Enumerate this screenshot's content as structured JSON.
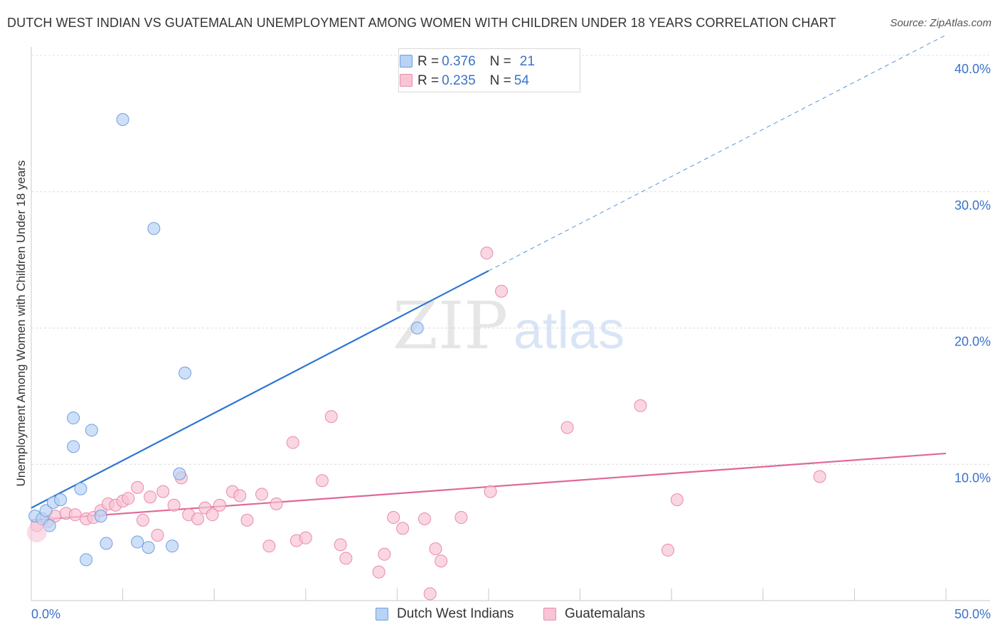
{
  "title": "DUTCH WEST INDIAN VS GUATEMALAN UNEMPLOYMENT AMONG WOMEN WITH CHILDREN UNDER 18 YEARS CORRELATION CHART",
  "source": "Source: ZipAtlas.com",
  "watermark": {
    "zip": "ZIP",
    "atlas": "atlas"
  },
  "legend_top": {
    "rows": [
      {
        "r_label": "R = ",
        "r_value": "0.376",
        "n_label": "N = ",
        "n_value": "21"
      },
      {
        "r_label": "R = ",
        "r_value": "0.235",
        "n_label": "N = ",
        "n_value": "54"
      }
    ]
  },
  "chart_data": {
    "type": "scatter",
    "title": "DUTCH WEST INDIAN VS GUATEMALAN UNEMPLOYMENT AMONG WOMEN WITH CHILDREN UNDER 18 YEARS CORRELATION CHART",
    "xlabel": "",
    "ylabel": "Unemployment Among Women with Children Under 18 years",
    "xlim": [
      0,
      50
    ],
    "ylim": [
      0,
      40
    ],
    "x_tick_labels": [
      "0.0%",
      "50.0%"
    ],
    "y_tick_labels": [
      "10.0%",
      "20.0%",
      "30.0%",
      "40.0%"
    ],
    "y_ticks": [
      10,
      20,
      30,
      40
    ],
    "grid": "horizontal dashed",
    "legend_position": "top-center and bottom",
    "series": [
      {
        "name": "Dutch West Indians",
        "color": "#6f9fe0",
        "fill": "#b9d3f4",
        "line_color": "#2f75d2",
        "r": 0.376,
        "n": 21,
        "trend": {
          "x": [
            0,
            25
          ],
          "y": [
            6.8,
            24.2
          ],
          "extend_to": [
            50,
            41.5
          ]
        },
        "points": [
          [
            0.2,
            6.2
          ],
          [
            0.6,
            6.0
          ],
          [
            0.8,
            6.6
          ],
          [
            1.0,
            5.5
          ],
          [
            1.2,
            7.2
          ],
          [
            1.6,
            7.4
          ],
          [
            2.3,
            11.3
          ],
          [
            2.3,
            13.4
          ],
          [
            2.7,
            8.2
          ],
          [
            3.0,
            3.0
          ],
          [
            3.3,
            12.5
          ],
          [
            3.8,
            6.2
          ],
          [
            4.1,
            4.2
          ],
          [
            5.0,
            35.3
          ],
          [
            5.8,
            4.3
          ],
          [
            6.4,
            3.9
          ],
          [
            6.7,
            27.3
          ],
          [
            7.7,
            4.0
          ],
          [
            8.1,
            9.3
          ],
          [
            8.4,
            16.7
          ],
          [
            21.1,
            20.0
          ]
        ]
      },
      {
        "name": "Guatemalans",
        "color": "#e98aab",
        "fill": "#f7c5d6",
        "line_color": "#e0679a",
        "r": 0.235,
        "n": 54,
        "trend": {
          "x": [
            0,
            50
          ],
          "y": [
            5.9,
            10.8
          ]
        },
        "points": [
          [
            0.3,
            5.5
          ],
          [
            0.9,
            5.8
          ],
          [
            1.3,
            6.2
          ],
          [
            1.9,
            6.4
          ],
          [
            2.4,
            6.3
          ],
          [
            3.0,
            6.0
          ],
          [
            3.4,
            6.1
          ],
          [
            3.8,
            6.6
          ],
          [
            4.2,
            7.1
          ],
          [
            4.6,
            7.0
          ],
          [
            5.0,
            7.3
          ],
          [
            5.3,
            7.5
          ],
          [
            5.8,
            8.3
          ],
          [
            6.1,
            5.9
          ],
          [
            6.5,
            7.6
          ],
          [
            6.9,
            4.8
          ],
          [
            7.2,
            8.0
          ],
          [
            7.8,
            7.0
          ],
          [
            8.2,
            9.0
          ],
          [
            8.6,
            6.3
          ],
          [
            9.1,
            6.0
          ],
          [
            9.5,
            6.8
          ],
          [
            9.9,
            6.3
          ],
          [
            10.3,
            7.0
          ],
          [
            11.0,
            8.0
          ],
          [
            11.4,
            7.7
          ],
          [
            11.8,
            5.9
          ],
          [
            12.6,
            7.8
          ],
          [
            13.0,
            4.0
          ],
          [
            13.4,
            7.1
          ],
          [
            14.3,
            11.6
          ],
          [
            14.5,
            4.4
          ],
          [
            15.0,
            4.6
          ],
          [
            15.9,
            8.8
          ],
          [
            16.4,
            13.5
          ],
          [
            16.9,
            4.1
          ],
          [
            17.2,
            3.1
          ],
          [
            19.0,
            2.1
          ],
          [
            19.3,
            3.4
          ],
          [
            19.8,
            6.1
          ],
          [
            20.3,
            5.3
          ],
          [
            21.5,
            6.0
          ],
          [
            21.8,
            0.5
          ],
          [
            22.1,
            3.8
          ],
          [
            22.4,
            2.9
          ],
          [
            23.5,
            6.1
          ],
          [
            24.9,
            25.5
          ],
          [
            25.1,
            8.0
          ],
          [
            25.7,
            22.7
          ],
          [
            29.3,
            12.7
          ],
          [
            33.3,
            14.3
          ],
          [
            34.8,
            3.7
          ],
          [
            35.3,
            7.4
          ],
          [
            43.1,
            9.1
          ]
        ]
      }
    ]
  },
  "legend_bottom": [
    "Dutch West Indians",
    "Guatemalans"
  ]
}
